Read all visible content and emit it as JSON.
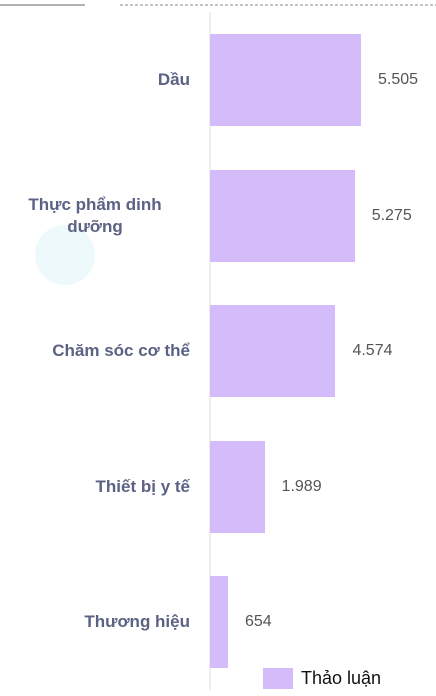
{
  "chart_data": {
    "type": "bar",
    "orientation": "horizontal",
    "categories": [
      "Dầu",
      "Thực phẩm dinh dưỡng",
      "Chăm sóc cơ thể",
      "Thiết bị y tế",
      "Thương hiệu"
    ],
    "series": [
      {
        "name": "Thảo luận",
        "color": "#d4bcfb",
        "values": [
          5505,
          5275,
          4574,
          1989,
          654
        ],
        "value_labels": [
          "5.505",
          "5.275",
          "4.574",
          "1.989",
          "654"
        ]
      }
    ],
    "legend": "bottom-right"
  }
}
